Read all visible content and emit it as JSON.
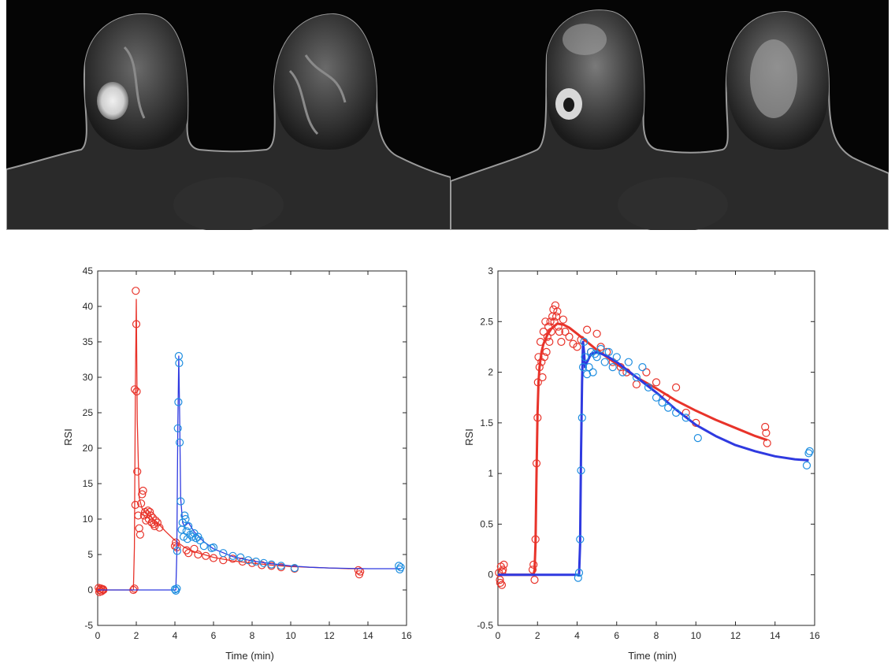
{
  "colors": {
    "red_series": "#e8332a",
    "blue_series": "#2f3ae0",
    "blue_markers": "#1f8ee0",
    "axis": "#262626"
  },
  "images": [
    {
      "name": "mri-breast-slice-left",
      "kind": "axial breast MRI"
    },
    {
      "name": "mri-breast-slice-right",
      "kind": "axial breast MRI"
    }
  ],
  "chart_data": [
    {
      "type": "scatter",
      "title": "",
      "xlabel": "Time (min)",
      "ylabel": "RSI",
      "xlim": [
        0,
        16
      ],
      "ylim": [
        -5,
        45
      ],
      "xticks": [
        "0",
        "2",
        "4",
        "6",
        "8",
        "10",
        "12",
        "14",
        "16"
      ],
      "yticks": [
        "-5",
        "0",
        "5",
        "10",
        "15",
        "20",
        "25",
        "30",
        "35",
        "40",
        "45"
      ],
      "grid": false,
      "series": [
        {
          "color": "red",
          "fit": {
            "x": [
              0,
              1.85,
              1.9,
              1.95,
              2.0,
              2.05,
              2.15,
              2.3,
              2.5,
              2.8,
              3.1,
              3.5,
              4.0,
              4.5,
              5.0,
              5.5,
              6,
              7,
              8,
              9,
              10,
              11,
              12,
              13,
              13.6
            ],
            "y": [
              0,
              0,
              6,
              28,
              41,
              24,
              13,
              11.5,
              10.8,
              10.2,
              9.5,
              8.3,
              7.0,
              6.0,
              5.4,
              5.0,
              4.6,
              4.1,
              3.8,
              3.5,
              3.3,
              3.2,
              3.1,
              3.0,
              3.0
            ]
          },
          "points": {
            "x": [
              0.05,
              0.1,
              0.15,
              0.2,
              0.25,
              0.3,
              0.08,
              0.18,
              0.28,
              1.85,
              1.9,
              1.95,
              1.92,
              1.97,
              2.0,
              2.02,
              2.05,
              2.1,
              2.15,
              2.2,
              2.25,
              2.3,
              2.35,
              2.4,
              2.45,
              2.5,
              2.55,
              2.6,
              2.65,
              2.7,
              2.75,
              2.8,
              2.85,
              2.9,
              2.95,
              3.0,
              3.1,
              3.2,
              4.0,
              4.05,
              4.1,
              4.6,
              4.7,
              5.0,
              5.2,
              5.6,
              6.0,
              6.5,
              7.0,
              7.5,
              8.0,
              8.5,
              9.0,
              9.5,
              10.2,
              13.5,
              13.55,
              13.6
            ],
            "y": [
              0.3,
              0,
              0.2,
              -0.2,
              0.1,
              0,
              -0.3,
              0.2,
              0.1,
              0,
              0.2,
              12,
              28.3,
              42.2,
              37.5,
              28,
              16.7,
              10.5,
              8.7,
              7.8,
              12.2,
              13.5,
              14,
              10.5,
              11,
              9.8,
              10.7,
              11.2,
              10,
              11,
              10.5,
              9.5,
              10.2,
              9.3,
              9,
              9.8,
              9.5,
              8.8,
              6.2,
              6.7,
              6.0,
              5.6,
              5.2,
              5.8,
              5,
              4.8,
              4.5,
              4.2,
              4.4,
              4,
              3.8,
              3.5,
              3.4,
              3.2,
              3.0,
              2.8,
              2.2,
              2.6
            ]
          }
        },
        {
          "color": "blue",
          "fit": {
            "x": [
              0,
              4.05,
              4.1,
              4.15,
              4.2,
              4.25,
              4.3,
              4.4,
              4.5,
              4.7,
              5.0,
              5.5,
              6,
              7,
              8,
              9,
              10,
              11,
              12,
              13,
              14,
              15,
              15.7
            ],
            "y": [
              0,
              0,
              5,
              23,
              33,
              24,
              13,
              9.5,
              9.0,
              9.5,
              8.2,
              6.8,
              5.8,
              4.7,
              4.1,
              3.7,
              3.4,
              3.2,
              3.1,
              3.05,
              3.0,
              3.0,
              3.0
            ]
          },
          "points": {
            "x": [
              4.0,
              4.05,
              4.1,
              4.12,
              4.15,
              4.18,
              4.2,
              4.22,
              4.25,
              4.3,
              4.35,
              4.4,
              4.45,
              4.5,
              4.55,
              4.6,
              4.65,
              4.7,
              4.8,
              4.9,
              5.0,
              5.1,
              5.2,
              5.3,
              5.5,
              5.9,
              6.0,
              6.5,
              7.0,
              7.4,
              7.8,
              8.2,
              8.6,
              9.0,
              9.5,
              10.2,
              15.6,
              15.65,
              15.7
            ],
            "y": [
              0.1,
              -0.1,
              0.2,
              5.5,
              22.8,
              26.5,
              33,
              32,
              20.8,
              12.5,
              8.5,
              9.5,
              7.5,
              10.5,
              10,
              8.3,
              7.2,
              9,
              7.8,
              7.5,
              8,
              7.3,
              7.5,
              7,
              6.2,
              5.9,
              6.0,
              5.2,
              4.8,
              4.6,
              4.2,
              4,
              3.8,
              3.6,
              3.4,
              3.1,
              3.4,
              2.9,
              3.2
            ]
          }
        }
      ]
    },
    {
      "type": "scatter",
      "title": "",
      "xlabel": "Time (min)",
      "ylabel": "RSI",
      "xlim": [
        0,
        16
      ],
      "ylim": [
        -0.5,
        3
      ],
      "xticks": [
        "0",
        "2",
        "4",
        "6",
        "8",
        "10",
        "12",
        "14",
        "16"
      ],
      "yticks": [
        "-0.5",
        "0",
        "0.5",
        "1",
        "1.5",
        "2",
        "2.5",
        "3"
      ],
      "grid": false,
      "series": [
        {
          "color": "red",
          "fit": {
            "x": [
              0,
              1.8,
              1.85,
              1.9,
              1.95,
              2.0,
              2.05,
              2.1,
              2.2,
              2.3,
              2.5,
              2.7,
              3.0,
              3.3,
              3.6,
              4.0,
              4.5,
              5,
              6,
              7,
              8,
              9,
              10,
              11,
              12,
              13,
              13.6
            ],
            "y": [
              0,
              0,
              0.05,
              0.3,
              1.0,
              1.6,
              1.9,
              2.05,
              2.2,
              2.28,
              2.37,
              2.43,
              2.48,
              2.47,
              2.44,
              2.38,
              2.3,
              2.22,
              2.08,
              1.95,
              1.84,
              1.72,
              1.62,
              1.53,
              1.45,
              1.37,
              1.33
            ]
          },
          "points": {
            "x": [
              0.05,
              0.1,
              0.15,
              0.2,
              0.25,
              0.3,
              0.12,
              0.22,
              1.75,
              1.8,
              1.85,
              1.9,
              1.95,
              2.0,
              2.02,
              2.05,
              2.1,
              2.15,
              2.2,
              2.25,
              2.3,
              2.35,
              2.4,
              2.45,
              2.5,
              2.55,
              2.6,
              2.65,
              2.7,
              2.75,
              2.8,
              2.85,
              2.9,
              2.95,
              3.0,
              3.05,
              3.1,
              3.2,
              3.3,
              3.4,
              3.6,
              3.8,
              4.0,
              4.2,
              4.5,
              4.7,
              5.0,
              5.2,
              5.5,
              5.8,
              6.2,
              6.5,
              7.0,
              7.5,
              8.0,
              8.5,
              9.0,
              9.5,
              10.0,
              13.5,
              13.55,
              13.6
            ],
            "y": [
              0.02,
              -0.05,
              0.08,
              -0.1,
              0.05,
              0.1,
              -0.08,
              0.03,
              0.05,
              0.1,
              -0.05,
              0.35,
              1.1,
              1.55,
              1.9,
              2.15,
              2.05,
              2.3,
              2.1,
              1.95,
              2.4,
              2.15,
              2.5,
              2.2,
              2.35,
              2.45,
              2.3,
              2.5,
              2.4,
              2.55,
              2.62,
              2.5,
              2.66,
              2.55,
              2.6,
              2.45,
              2.4,
              2.3,
              2.52,
              2.4,
              2.35,
              2.28,
              2.25,
              2.32,
              2.42,
              2.2,
              2.38,
              2.25,
              2.2,
              2.1,
              2.05,
              2,
              1.88,
              2.0,
              1.9,
              1.75,
              1.85,
              1.6,
              1.5,
              1.46,
              1.4,
              1.3
            ]
          }
        },
        {
          "color": "blue",
          "fit": {
            "x": [
              0,
              4.1,
              4.15,
              4.2,
              4.25,
              4.3,
              4.35,
              4.4,
              4.5,
              4.7,
              5.0,
              5.5,
              6,
              7,
              8,
              9,
              10,
              11,
              12,
              13,
              14,
              15,
              15.7
            ],
            "y": [
              0,
              0,
              0.3,
              1.2,
              1.9,
              2.3,
              2.2,
              2.05,
              2.1,
              2.18,
              2.2,
              2.16,
              2.1,
              1.95,
              1.8,
              1.63,
              1.48,
              1.37,
              1.28,
              1.22,
              1.17,
              1.14,
              1.13
            ]
          },
          "points": {
            "x": [
              4.05,
              4.1,
              4.15,
              4.2,
              4.25,
              4.3,
              4.35,
              4.4,
              4.5,
              4.6,
              4.7,
              4.8,
              4.9,
              5.0,
              5.2,
              5.4,
              5.6,
              5.8,
              6.0,
              6.3,
              6.6,
              7.0,
              7.3,
              7.6,
              8.0,
              8.3,
              8.6,
              9.0,
              9.5,
              10.1,
              15.6,
              15.7,
              15.75
            ],
            "y": [
              -0.03,
              0.02,
              0.35,
              1.03,
              1.55,
              2.05,
              2.3,
              2.15,
              1.98,
              2.05,
              2.2,
              2.0,
              2.18,
              2.15,
              2.23,
              2.1,
              2.2,
              2.05,
              2.15,
              2.0,
              2.1,
              1.95,
              2.05,
              1.85,
              1.75,
              1.7,
              1.65,
              1.6,
              1.55,
              1.35,
              1.08,
              1.2,
              1.22
            ]
          }
        }
      ]
    }
  ]
}
